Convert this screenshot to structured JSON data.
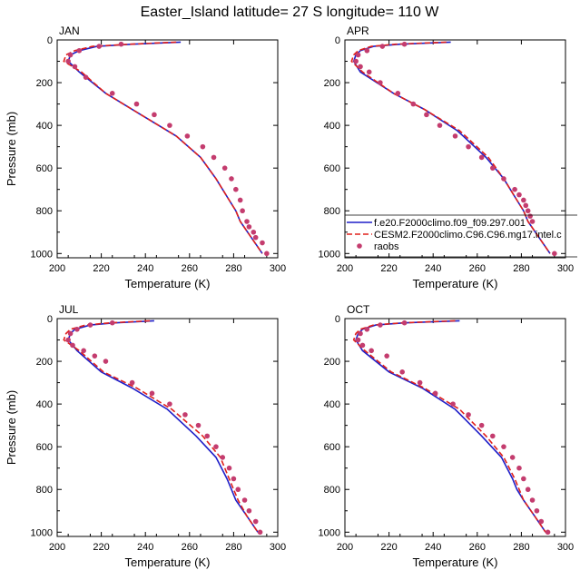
{
  "title": "Easter_Island  latitude= 27 S longitude= 110 W",
  "colors": {
    "model1": "#1f1fc8",
    "model2": "#e0201c",
    "obs": "#c43c6e"
  },
  "legend": {
    "entries": [
      "f.e20.F2000climo.f09_f09.297.001",
      "CESM2.F2000climo.C96.C96.mg17.intel.c",
      "raobs"
    ],
    "placement": "APR panel, lower right"
  },
  "chart_data": [
    {
      "type": "line",
      "panel": "JAN",
      "xlabel": "Temperature (K)",
      "ylabel": "Pressure (mb)",
      "xlim": [
        200,
        300
      ],
      "ylim": [
        1020,
        0
      ],
      "xticks": [
        "200",
        "220",
        "240",
        "260",
        "280",
        "300"
      ],
      "yticks": [
        "0",
        "200",
        "400",
        "600",
        "800",
        "1000"
      ],
      "series": [
        {
          "name": "f.e20.F2000climo.f09_f09.297.001",
          "style": "solid",
          "x": [
            256,
            234,
            218,
            210,
            206,
            205,
            210,
            222,
            238,
            254,
            265,
            272,
            278,
            281,
            283,
            288,
            293
          ],
          "y": [
            10,
            20,
            30,
            50,
            70,
            100,
            150,
            250,
            350,
            450,
            550,
            650,
            750,
            800,
            850,
            925,
            1000
          ]
        },
        {
          "name": "CESM2.F2000climo.C96.C96.mg17.intel.c",
          "style": "dashed",
          "x": [
            254,
            233,
            216,
            208,
            204,
            203,
            211,
            222,
            238,
            254,
            265,
            272,
            278,
            281,
            283,
            288,
            293
          ],
          "y": [
            10,
            20,
            30,
            50,
            70,
            100,
            150,
            250,
            350,
            450,
            550,
            650,
            750,
            800,
            850,
            925,
            1000
          ]
        },
        {
          "name": "raobs",
          "style": "markers",
          "x": [
            229,
            219,
            210,
            206,
            205,
            208,
            213,
            225,
            236,
            244,
            251,
            259,
            266,
            271,
            276,
            279,
            281,
            283,
            284,
            286,
            287,
            289,
            290,
            293,
            295
          ],
          "y": [
            20,
            30,
            50,
            70,
            100,
            125,
            175,
            250,
            300,
            350,
            400,
            450,
            500,
            550,
            600,
            650,
            700,
            750,
            800,
            850,
            875,
            900,
            925,
            950,
            1000
          ]
        }
      ]
    },
    {
      "type": "line",
      "panel": "APR",
      "xlabel": "Temperature (K)",
      "ylabel": "",
      "xlim": [
        200,
        300
      ],
      "ylim": [
        1020,
        0
      ],
      "xticks": [
        "200",
        "220",
        "240",
        "260",
        "280",
        "300"
      ],
      "yticks": [
        "0",
        "200",
        "400",
        "600",
        "800",
        "1000"
      ],
      "series": [
        {
          "name": "f.e20.F2000climo.f09_f09.297.001",
          "style": "solid",
          "x": [
            248,
            225,
            213,
            207,
            205,
            204,
            207,
            222,
            236,
            251,
            264,
            272,
            278,
            281,
            283,
            288,
            293
          ],
          "y": [
            10,
            20,
            30,
            50,
            70,
            100,
            150,
            250,
            325,
            425,
            550,
            650,
            750,
            800,
            850,
            925,
            1000
          ]
        },
        {
          "name": "CESM2.F2000climo.C96.C96.mg17.intel.c",
          "style": "dashed",
          "x": [
            246,
            223,
            212,
            206,
            204,
            203,
            208,
            222,
            236,
            252,
            265,
            272,
            278,
            281,
            283,
            288,
            293
          ],
          "y": [
            10,
            20,
            30,
            50,
            70,
            100,
            150,
            250,
            325,
            425,
            550,
            650,
            750,
            800,
            850,
            925,
            1000
          ]
        },
        {
          "name": "raobs",
          "style": "markers",
          "x": [
            227,
            217,
            210,
            206,
            205,
            207,
            211,
            216,
            224,
            231,
            237,
            243,
            250,
            256,
            262,
            267,
            272,
            277,
            279,
            281,
            282,
            283,
            284,
            285,
            295
          ],
          "y": [
            20,
            30,
            50,
            70,
            100,
            125,
            150,
            200,
            250,
            300,
            350,
            400,
            450,
            500,
            550,
            600,
            650,
            700,
            725,
            750,
            775,
            800,
            825,
            850,
            1000
          ]
        }
      ]
    },
    {
      "type": "line",
      "panel": "JUL",
      "xlabel": "Temperature (K)",
      "ylabel": "Pressure (mb)",
      "xlim": [
        200,
        300
      ],
      "ylim": [
        1020,
        0
      ],
      "xticks": [
        "200",
        "220",
        "240",
        "260",
        "280",
        "300"
      ],
      "yticks": [
        "0",
        "200",
        "400",
        "600",
        "800",
        "1000"
      ],
      "series": [
        {
          "name": "f.e20.F2000climo.f09_f09.297.001",
          "style": "solid",
          "x": [
            244,
            226,
            215,
            208,
            206,
            205,
            209,
            220,
            234,
            250,
            263,
            272,
            277,
            279,
            281,
            286,
            291
          ],
          "y": [
            10,
            20,
            30,
            50,
            70,
            100,
            150,
            250,
            325,
            425,
            550,
            650,
            750,
            800,
            850,
            925,
            1000
          ]
        },
        {
          "name": "CESM2.F2000climo.C96.C96.mg17.intel.c",
          "style": "dashed",
          "x": [
            242,
            224,
            213,
            206,
            204,
            203,
            210,
            221,
            236,
            252,
            266,
            274,
            278,
            280,
            282,
            286,
            291
          ],
          "y": [
            10,
            20,
            30,
            50,
            70,
            100,
            150,
            250,
            325,
            425,
            550,
            650,
            750,
            800,
            850,
            925,
            1000
          ]
        },
        {
          "name": "raobs",
          "style": "markers",
          "x": [
            225,
            215,
            209,
            206,
            205,
            207,
            212,
            217,
            222,
            234,
            243,
            251,
            258,
            264,
            268,
            272,
            275,
            278,
            280,
            282,
            285,
            287,
            290,
            292
          ],
          "y": [
            20,
            30,
            50,
            70,
            100,
            125,
            150,
            175,
            200,
            300,
            350,
            400,
            450,
            500,
            550,
            600,
            650,
            700,
            750,
            800,
            850,
            900,
            950,
            1000
          ]
        }
      ]
    },
    {
      "type": "line",
      "panel": "OCT",
      "xlabel": "Temperature (K)",
      "ylabel": "",
      "xlim": [
        200,
        300
      ],
      "ylim": [
        1020,
        0
      ],
      "xticks": [
        "200",
        "220",
        "240",
        "260",
        "280",
        "300"
      ],
      "yticks": [
        "0",
        "200",
        "400",
        "600",
        "800",
        "1000"
      ],
      "series": [
        {
          "name": "f.e20.F2000climo.f09_f09.297.001",
          "style": "solid",
          "x": [
            252,
            227,
            214,
            208,
            206,
            205,
            208,
            220,
            235,
            250,
            262,
            271,
            276,
            278,
            281,
            286,
            291
          ],
          "y": [
            10,
            20,
            30,
            50,
            70,
            100,
            150,
            250,
            325,
            425,
            550,
            650,
            750,
            800,
            850,
            925,
            1000
          ]
        },
        {
          "name": "CESM2.F2000climo.C96.C96.mg17.intel.c",
          "style": "dashed",
          "x": [
            250,
            226,
            213,
            207,
            205,
            204,
            209,
            221,
            236,
            252,
            264,
            272,
            277,
            279,
            281,
            286,
            291
          ],
          "y": [
            10,
            20,
            30,
            50,
            70,
            100,
            150,
            250,
            325,
            425,
            550,
            650,
            750,
            800,
            850,
            925,
            1000
          ]
        },
        {
          "name": "raobs",
          "style": "markers",
          "x": [
            227,
            216,
            210,
            207,
            206,
            208,
            212,
            219,
            226,
            234,
            241,
            249,
            256,
            262,
            267,
            272,
            276,
            279,
            281,
            283,
            285,
            287,
            289,
            292
          ],
          "y": [
            20,
            30,
            50,
            70,
            100,
            125,
            150,
            175,
            250,
            300,
            350,
            400,
            450,
            500,
            550,
            600,
            650,
            700,
            750,
            800,
            850,
            900,
            950,
            1000
          ]
        }
      ]
    }
  ]
}
